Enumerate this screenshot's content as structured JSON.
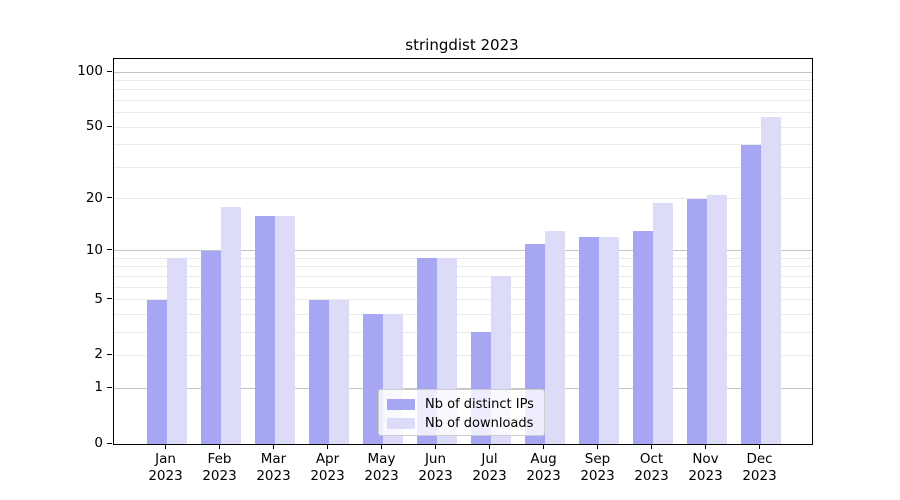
{
  "title": "stringdist 2023",
  "chart_data": {
    "type": "bar",
    "title": "stringdist 2023",
    "categories": [
      "Jan",
      "Feb",
      "Mar",
      "Apr",
      "May",
      "Jun",
      "Jul",
      "Aug",
      "Sep",
      "Oct",
      "Nov",
      "Dec"
    ],
    "category_year": "2023",
    "series": [
      {
        "name": "Nb of distinct IPs",
        "color": "#a6a6f2",
        "values": [
          5,
          10,
          16,
          5,
          4,
          9,
          3,
          11,
          12,
          13,
          20,
          40
        ]
      },
      {
        "name": "Nb of downloads",
        "color": "#dcdcf9",
        "values": [
          9,
          18,
          16,
          5,
          4,
          9,
          7,
          13,
          12,
          19,
          21,
          57
        ]
      }
    ],
    "yscale": "log1p",
    "ylim": [
      0,
      118
    ],
    "yticks": [
      {
        "value": 100,
        "label": "100"
      },
      {
        "value": 50,
        "label": "50"
      },
      {
        "value": 20,
        "label": "20"
      },
      {
        "value": 10,
        "label": "10"
      },
      {
        "value": 5,
        "label": "5"
      },
      {
        "value": 2,
        "label": "2"
      },
      {
        "value": 1,
        "label": "1"
      },
      {
        "value": 0,
        "label": "0"
      }
    ],
    "major_gridlines": [
      1,
      10,
      100
    ],
    "minor_gridlines": [
      2,
      3,
      4,
      5,
      6,
      7,
      8,
      9,
      20,
      30,
      40,
      50,
      60,
      70,
      80,
      90
    ],
    "grid": true,
    "legend_position": "lower center"
  },
  "legend": {
    "items": [
      {
        "label": "Nb of distinct IPs",
        "color": "#a6a6f2"
      },
      {
        "label": "Nb of downloads",
        "color": "#dcdcf9"
      }
    ]
  },
  "colors": {
    "background": "#ffffff",
    "axis": "#000000",
    "gridline_major": "#c4c4c4",
    "gridline_minor": "#ebebeb",
    "bar_distinct_ips": "#a6a6f2",
    "bar_downloads": "#dcdcf9",
    "legend_border": "#cccccc"
  }
}
